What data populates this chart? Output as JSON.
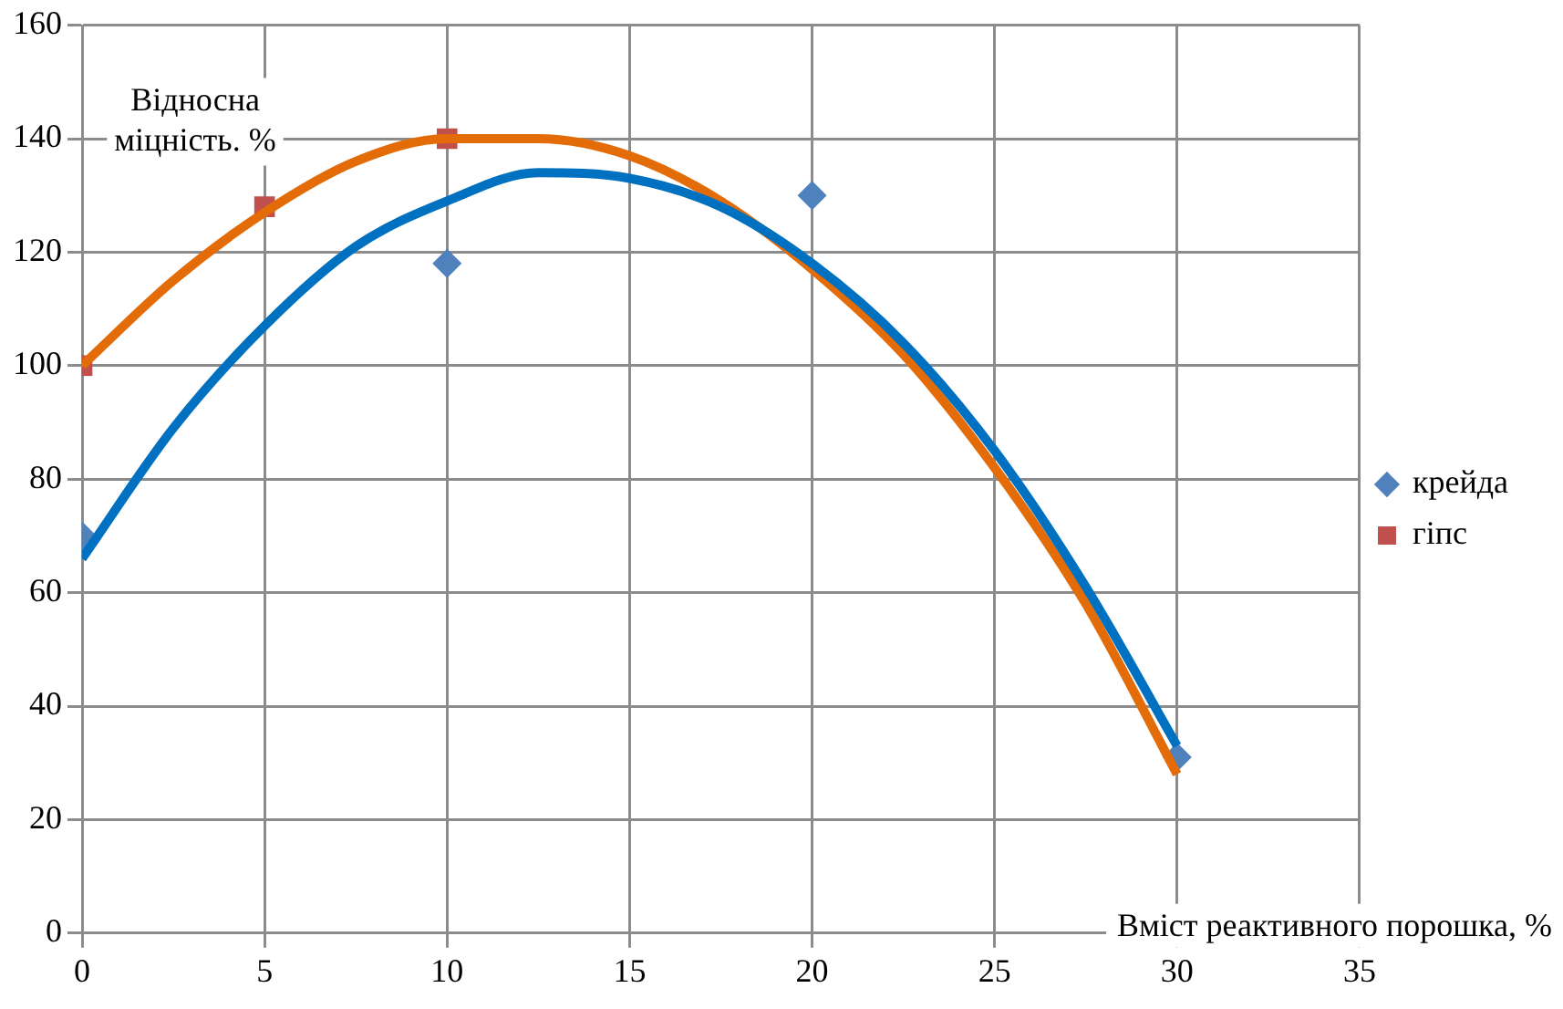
{
  "chart_data": {
    "type": "scatter",
    "xlabel": "Вміст реактивного порошка, %",
    "ylabel": "Відносна міцність. %",
    "xlim": [
      0,
      35
    ],
    "xticks": [
      0,
      5,
      10,
      15,
      20,
      25,
      30,
      35
    ],
    "ylim": [
      0,
      160
    ],
    "yticks": [
      0,
      20,
      40,
      60,
      80,
      100,
      120,
      140,
      160
    ],
    "grid": true,
    "legend": "right",
    "series": [
      {
        "type": "line",
        "color": "#0070c0",
        "marker": "none",
        "x": [
          0,
          2.5,
          5,
          7.5,
          10,
          12.5,
          15,
          17.5,
          20,
          22.5,
          25,
          27.5,
          30
        ],
        "values": [
          66,
          89,
          107,
          121,
          129,
          134,
          133,
          128,
          118,
          104,
          85,
          61,
          33
        ]
      },
      {
        "type": "line",
        "color": "#e36c09",
        "marker": "none",
        "x": [
          0,
          2.5,
          5,
          7.5,
          10,
          12.5,
          15,
          17.5,
          20,
          22.5,
          25,
          27.5,
          30
        ],
        "values": [
          100,
          115,
          127,
          136,
          140,
          140,
          137,
          129,
          117,
          102,
          82,
          58,
          28
        ]
      },
      {
        "name": "крейда",
        "type": "scatter",
        "color": "#4f81bd",
        "marker": "diamond",
        "x": [
          0,
          10,
          20,
          30
        ],
        "values": [
          70,
          118,
          130,
          31
        ]
      },
      {
        "name": "гіпс",
        "type": "scatter",
        "color": "#c0504d",
        "marker": "square",
        "x": [
          0,
          5,
          10
        ],
        "values": [
          100,
          128,
          140
        ]
      }
    ]
  }
}
